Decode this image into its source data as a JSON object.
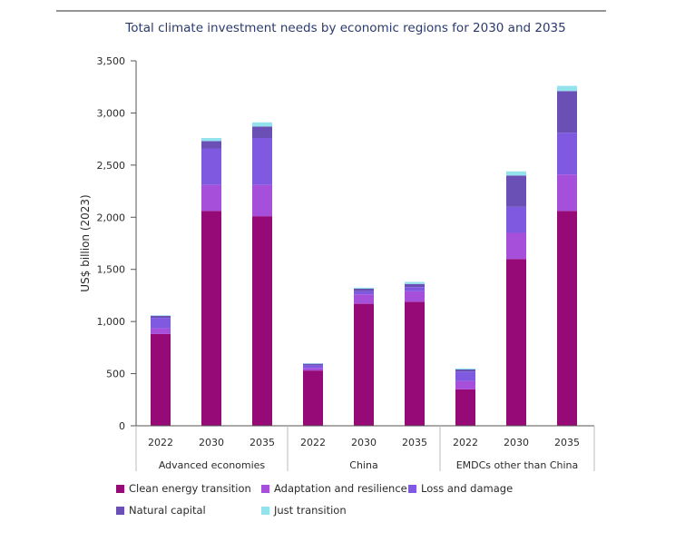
{
  "chart_data": {
    "type": "bar",
    "stacked": true,
    "title": "Total climate investment needs by economic regions for 2030 and 2035",
    "ylabel": "US$ billion (2023)",
    "ylim": [
      0,
      3500
    ],
    "yticks": [
      0,
      500,
      1000,
      1500,
      2000,
      2500,
      3000,
      3500
    ],
    "ytick_labels": [
      "0",
      "500",
      "1,000",
      "1,500",
      "2,000",
      "2,500",
      "3,000",
      "3,500"
    ],
    "grid": false,
    "legend_position": "bottom",
    "groups": [
      {
        "label": "Advanced economies",
        "categories": [
          "2022",
          "2030",
          "2035"
        ]
      },
      {
        "label": "China",
        "categories": [
          "2022",
          "2030",
          "2035"
        ]
      },
      {
        "label": "EMDCs other than China",
        "categories": [
          "2022",
          "2030",
          "2035"
        ]
      }
    ],
    "series": [
      {
        "name": "Clean energy transition",
        "color": "#960a78",
        "values": [
          880,
          2060,
          2010,
          530,
          1170,
          1190,
          350,
          1600,
          2060
        ]
      },
      {
        "name": "Adaptation and resilience",
        "color": "#a64fdb",
        "values": [
          55,
          250,
          300,
          25,
          90,
          100,
          80,
          250,
          350
        ]
      },
      {
        "name": "Loss and damage",
        "color": "#7f5ae0",
        "values": [
          100,
          350,
          450,
          25,
          30,
          40,
          90,
          250,
          400
        ]
      },
      {
        "name": "Natural capital",
        "color": "#6a4fb5",
        "values": [
          20,
          70,
          110,
          15,
          25,
          30,
          20,
          300,
          400
        ]
      },
      {
        "name": "Just transition",
        "color": "#94e2ec",
        "values": [
          5,
          30,
          40,
          5,
          10,
          20,
          10,
          40,
          50
        ]
      }
    ]
  }
}
